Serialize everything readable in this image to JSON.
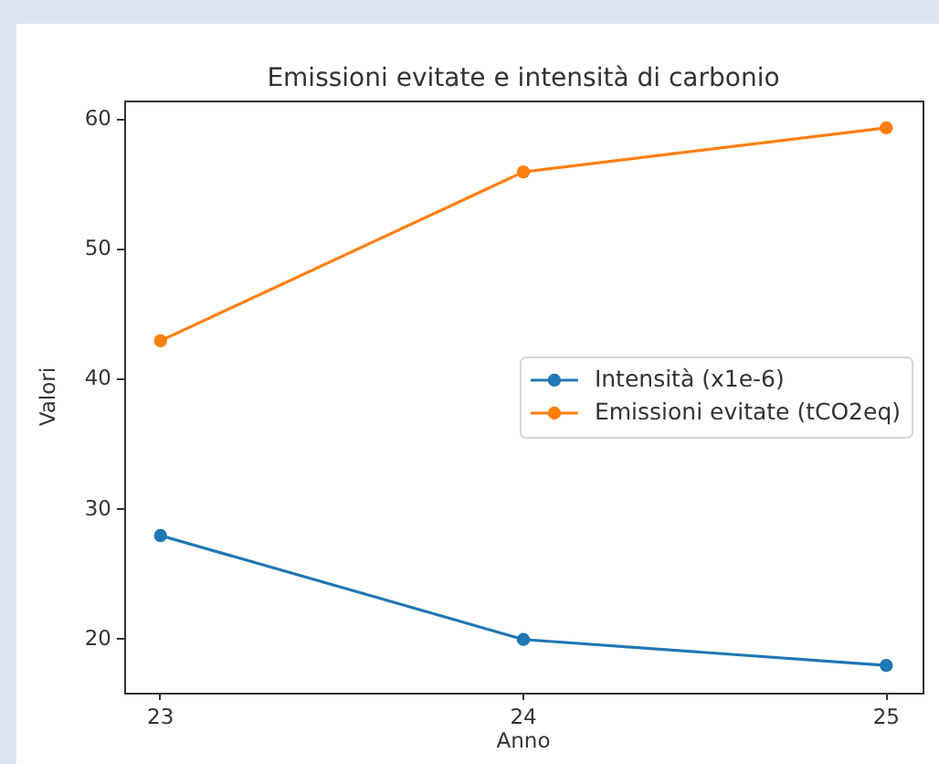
{
  "chart_data": {
    "type": "line",
    "title": "Emissioni evitate e intensità di carbonio",
    "xlabel": "Anno",
    "ylabel": "Valori",
    "x": [
      23,
      24,
      25
    ],
    "series": [
      {
        "name": "Intensità (x1e-6)",
        "color": "#1f77b4",
        "values": [
          28,
          20,
          18
        ]
      },
      {
        "name": "Emissioni evitate (tCO2eq)",
        "color": "#ff7f0e",
        "values": [
          43,
          56,
          59.4
        ]
      }
    ],
    "xlim": [
      22.9,
      25.1
    ],
    "xticks": [
      23,
      24,
      25
    ],
    "ylim": [
      15.9,
      61.5
    ],
    "yticks": [
      20,
      30,
      40,
      50,
      60
    ],
    "legend": "center right",
    "marker": "circle",
    "line_style": "solid",
    "grid": false
  }
}
